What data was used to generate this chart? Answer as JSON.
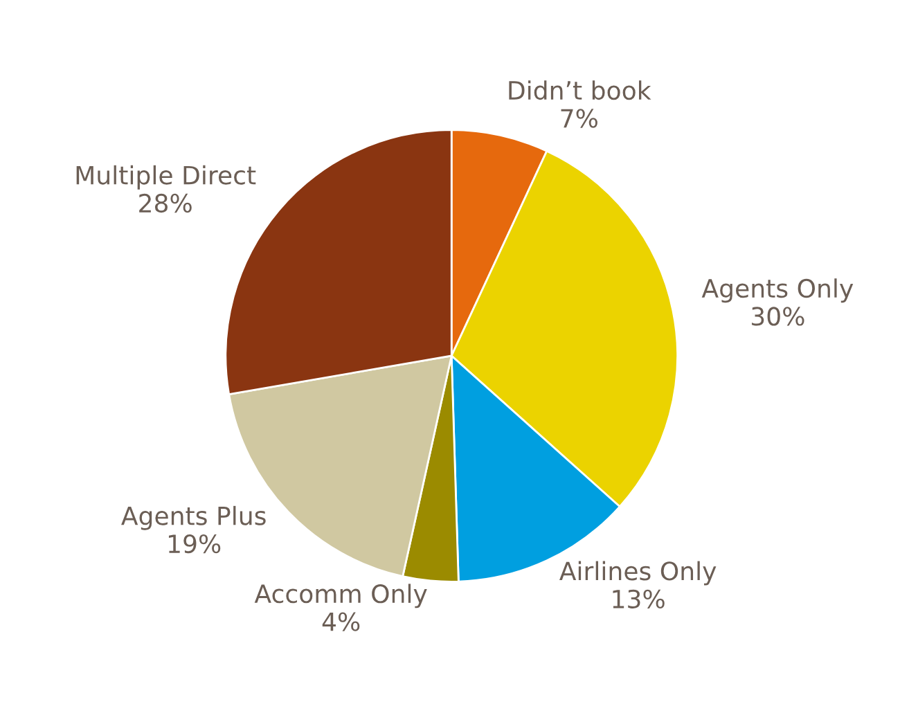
{
  "chart_data": {
    "type": "pie",
    "categories": [
      "Didn’t book",
      "Agents Only",
      "Airlines Only",
      "Accomm Only",
      "Agents Plus",
      "Multiple Direct"
    ],
    "values": [
      7,
      30,
      13,
      4,
      19,
      28
    ],
    "value_labels": [
      "7%",
      "30%",
      "13%",
      "4%",
      "19%",
      "28%"
    ],
    "colors": [
      "#e6690d",
      "#ebd300",
      "#009fe0",
      "#9b8b00",
      "#d0c8a1",
      "#8a3511"
    ],
    "legend": false
  }
}
